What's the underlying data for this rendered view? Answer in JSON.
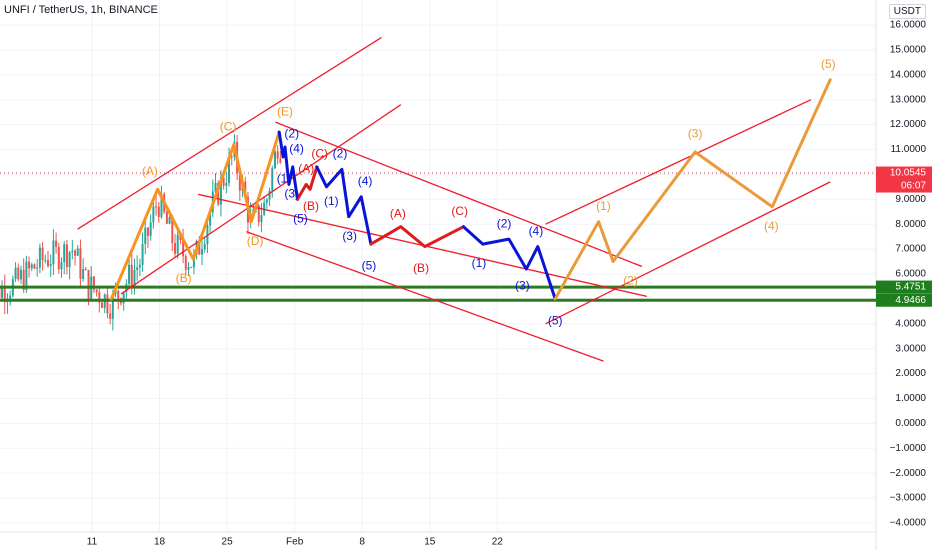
{
  "header": {
    "title": "UNFI / TetherUS, 1h, BINANCE",
    "currency": "USDT"
  },
  "chart_data": {
    "type": "line",
    "title": "UNFI / TetherUS, 1h, BINANCE",
    "ylim": [
      -4.0,
      16.0
    ],
    "y_ticks": [
      "16.0000",
      "15.0000",
      "14.0000",
      "13.0000",
      "12.0000",
      "11.0000",
      "10.0000",
      "9.0000",
      "8.0000",
      "7.0000",
      "6.0000",
      "5.0000",
      "4.0000",
      "3.0000",
      "2.0000",
      "1.0000",
      "0.0000",
      "−1.0000",
      "−2.0000",
      "−3.0000",
      "−4.0000"
    ],
    "x_ticks": [
      {
        "label": "11",
        "day": 11
      },
      {
        "label": "18",
        "day": 18
      },
      {
        "label": "25",
        "day": 25
      },
      {
        "label": "Feb",
        "day": 32
      },
      {
        "label": "8",
        "day": 39
      },
      {
        "label": "15",
        "day": 46
      },
      {
        "label": "22",
        "day": 53
      }
    ],
    "price_labels": [
      {
        "text": "10.0545",
        "value": 10.0545,
        "sub": "06:07",
        "color": "#f23645"
      },
      {
        "text": "5.4751",
        "value": 5.4751,
        "color": "#1e7e1e"
      },
      {
        "text": "4.9466",
        "value": 4.9466,
        "color": "#1e7e1e"
      }
    ],
    "support_lines": [
      {
        "value": 5.4751,
        "color": "#2d7a1f"
      },
      {
        "value": 4.9466,
        "color": "#2d7a1f"
      }
    ],
    "current_price_line": {
      "value": 10.0545,
      "color": "#f23645"
    },
    "channels": [
      {
        "x1": 9.5,
        "y1": 7.8,
        "x2": 41,
        "y2": 15.5
      },
      {
        "x1": 14,
        "y1": 5.2,
        "x2": 43,
        "y2": 12.8
      },
      {
        "x1": 22,
        "y1": 9.2,
        "x2": 68.5,
        "y2": 5.1
      },
      {
        "x1": 30,
        "y1": 12.1,
        "x2": 68,
        "y2": 6.3
      },
      {
        "x1": 27,
        "y1": 7.7,
        "x2": 64,
        "y2": 2.5
      },
      {
        "x1": 58,
        "y1": 4.0,
        "x2": 87.5,
        "y2": 9.7
      },
      {
        "x1": 58,
        "y1": 8.0,
        "x2": 85.5,
        "y2": 13.0
      }
    ],
    "series": [
      {
        "color": "#f7931e",
        "width": 3,
        "points": [
          [
            13,
            5.0
          ],
          [
            17.8,
            9.4
          ],
          [
            21.5,
            6.6
          ],
          [
            25.7,
            11.2
          ],
          [
            27.5,
            8.1
          ],
          [
            30.4,
            11.7
          ]
        ]
      },
      {
        "color": "#0a14d6",
        "width": 3,
        "points": [
          [
            30.4,
            11.7
          ],
          [
            30.8,
            10.7
          ],
          [
            31.0,
            11.1
          ],
          [
            31.4,
            9.6
          ],
          [
            31.8,
            10.3
          ],
          [
            32.3,
            9.0
          ]
        ]
      },
      {
        "color": "#e01b1b",
        "width": 3,
        "points": [
          [
            32.3,
            9.0
          ],
          [
            33.2,
            9.6
          ],
          [
            33.6,
            9.4
          ],
          [
            34.3,
            10.3
          ]
        ]
      },
      {
        "color": "#0a14d6",
        "width": 3,
        "points": [
          [
            34.3,
            10.3
          ],
          [
            35.3,
            9.5
          ],
          [
            36.9,
            10.2
          ],
          [
            37.6,
            8.3
          ],
          [
            38.9,
            9.1
          ],
          [
            39.9,
            7.2
          ]
        ]
      },
      {
        "color": "#e01b1b",
        "width": 3,
        "points": [
          [
            39.9,
            7.2
          ],
          [
            43.0,
            7.9
          ],
          [
            45.5,
            7.1
          ],
          [
            49.5,
            7.9
          ]
        ]
      },
      {
        "color": "#0a14d6",
        "width": 3,
        "points": [
          [
            49.5,
            7.9
          ],
          [
            51.5,
            7.2
          ],
          [
            54.2,
            7.4
          ],
          [
            56.0,
            6.2
          ],
          [
            57.2,
            7.1
          ],
          [
            59.0,
            5.0
          ]
        ]
      },
      {
        "color": "#ea9a3c",
        "width": 3,
        "points": [
          [
            59.0,
            5.0
          ],
          [
            63.5,
            8.1
          ],
          [
            65.0,
            6.5
          ],
          [
            73.5,
            10.9
          ],
          [
            81.5,
            8.7
          ],
          [
            87.5,
            13.8
          ]
        ]
      }
    ],
    "annotations": [
      {
        "text": "(A)",
        "x": 17,
        "y": 10.1,
        "color": "#f7931e"
      },
      {
        "text": "(B)",
        "x": 20.5,
        "y": 5.8,
        "color": "#f7931e"
      },
      {
        "text": "(C)",
        "x": 25.1,
        "y": 11.9,
        "color": "#f7931e"
      },
      {
        "text": "(D)",
        "x": 27.9,
        "y": 7.3,
        "color": "#f7931e"
      },
      {
        "text": "(E)",
        "x": 31.0,
        "y": 12.5,
        "color": "#f7931e"
      },
      {
        "text": "(2)",
        "x": 31.7,
        "y": 11.6,
        "color": "#0a14d6"
      },
      {
        "text": "(4)",
        "x": 32.2,
        "y": 11.0,
        "color": "#0a14d6"
      },
      {
        "text": "(1)",
        "x": 30.9,
        "y": 9.8,
        "color": "#0a14d6"
      },
      {
        "text": "(3)",
        "x": 31.7,
        "y": 9.2,
        "color": "#0a14d6"
      },
      {
        "text": "(5)",
        "x": 32.6,
        "y": 8.2,
        "color": "#0a14d6"
      },
      {
        "text": "(A)",
        "x": 33.2,
        "y": 10.2,
        "color": "#e01b1b"
      },
      {
        "text": "(B)",
        "x": 33.7,
        "y": 8.7,
        "color": "#e01b1b"
      },
      {
        "text": "(C)",
        "x": 34.6,
        "y": 10.8,
        "color": "#e01b1b"
      },
      {
        "text": "(2)",
        "x": 36.7,
        "y": 10.8,
        "color": "#0a14d6"
      },
      {
        "text": "(1)",
        "x": 35.8,
        "y": 8.9,
        "color": "#0a14d6"
      },
      {
        "text": "(4)",
        "x": 39.3,
        "y": 9.7,
        "color": "#0a14d6"
      },
      {
        "text": "(3)",
        "x": 37.7,
        "y": 7.5,
        "color": "#0a14d6"
      },
      {
        "text": "(5)",
        "x": 39.7,
        "y": 6.3,
        "color": "#0a14d6"
      },
      {
        "text": "(A)",
        "x": 42.7,
        "y": 8.4,
        "color": "#e01b1b"
      },
      {
        "text": "(B)",
        "x": 45.1,
        "y": 6.2,
        "color": "#e01b1b"
      },
      {
        "text": "(C)",
        "x": 49.1,
        "y": 8.5,
        "color": "#e01b1b"
      },
      {
        "text": "(1)",
        "x": 51.1,
        "y": 6.4,
        "color": "#0a14d6"
      },
      {
        "text": "(2)",
        "x": 53.7,
        "y": 8.0,
        "color": "#0a14d6"
      },
      {
        "text": "(3)",
        "x": 55.6,
        "y": 5.5,
        "color": "#0a14d6"
      },
      {
        "text": "(4)",
        "x": 57.0,
        "y": 7.7,
        "color": "#0a14d6"
      },
      {
        "text": "(5)",
        "x": 59.0,
        "y": 4.1,
        "color": "#0a14d6"
      },
      {
        "text": "(1)",
        "x": 64.0,
        "y": 8.7,
        "color": "#ea9a3c"
      },
      {
        "text": "(2)",
        "x": 66.8,
        "y": 5.7,
        "color": "#ea9a3c"
      },
      {
        "text": "(3)",
        "x": 73.5,
        "y": 11.6,
        "color": "#ea9a3c"
      },
      {
        "text": "(4)",
        "x": 81.4,
        "y": 7.9,
        "color": "#ea9a3c"
      },
      {
        "text": "(5)",
        "x": 87.3,
        "y": 14.4,
        "color": "#ea9a3c"
      }
    ],
    "candles_range": {
      "start_day": 0,
      "end_day": 30.6
    }
  }
}
